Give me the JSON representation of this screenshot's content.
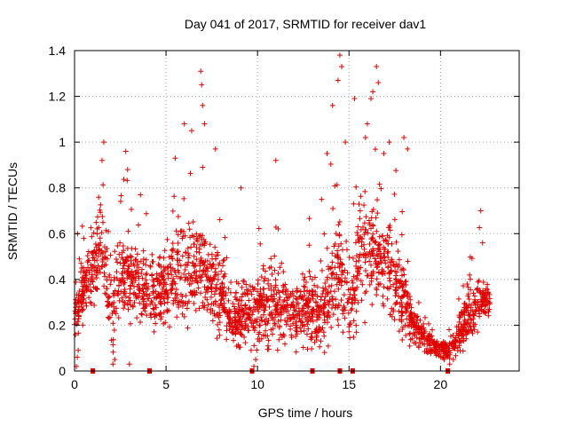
{
  "chart_data": {
    "type": "scatter",
    "title": "Day 041 of 2017, SRMTID for receiver dav1",
    "xlabel": "GPS time / hours",
    "ylabel": "SRMTID / TECUs",
    "xlim": [
      0,
      24.3
    ],
    "ylim": [
      0,
      1.4
    ],
    "x_ticks": [
      0,
      5,
      10,
      15,
      20
    ],
    "x_tick_labels": [
      "0",
      "5",
      "10",
      "15",
      "20"
    ],
    "y_ticks": [
      0,
      0.2,
      0.4,
      0.6,
      0.8,
      1.0,
      1.2,
      1.4
    ],
    "y_tick_labels": [
      "0",
      "0.2",
      "0.4",
      "0.6",
      "0.8",
      "1",
      "1.2",
      "1.4"
    ],
    "grid": true,
    "marker": "+",
    "color": "#e00000",
    "flag_markers_at_zero": [
      1.0,
      4.1,
      9.7,
      13.0,
      14.5,
      15.2,
      20.4
    ],
    "envelope": {
      "x": [
        0.0,
        0.5,
        1.0,
        1.5,
        2.0,
        2.5,
        3.0,
        3.5,
        4.0,
        4.5,
        5.0,
        5.5,
        6.0,
        6.5,
        7.0,
        7.5,
        8.0,
        8.5,
        9.0,
        9.5,
        10.0,
        10.5,
        11.0,
        11.5,
        12.0,
        12.5,
        13.0,
        13.5,
        14.0,
        14.5,
        15.0,
        15.5,
        16.0,
        16.5,
        17.0,
        17.5,
        18.0,
        18.5,
        19.0,
        19.5,
        20.0,
        20.5,
        21.0,
        21.5,
        22.0,
        22.5
      ],
      "center": [
        0.25,
        0.38,
        0.42,
        0.55,
        0.25,
        0.42,
        0.4,
        0.38,
        0.35,
        0.33,
        0.36,
        0.4,
        0.42,
        0.48,
        0.45,
        0.38,
        0.33,
        0.25,
        0.24,
        0.25,
        0.26,
        0.28,
        0.3,
        0.27,
        0.25,
        0.26,
        0.24,
        0.25,
        0.35,
        0.45,
        0.25,
        0.5,
        0.55,
        0.5,
        0.45,
        0.4,
        0.3,
        0.2,
        0.15,
        0.11,
        0.1,
        0.08,
        0.15,
        0.25,
        0.28,
        0.3
      ],
      "spread": [
        0.12,
        0.1,
        0.12,
        0.18,
        0.15,
        0.15,
        0.14,
        0.12,
        0.12,
        0.12,
        0.14,
        0.16,
        0.18,
        0.16,
        0.15,
        0.13,
        0.12,
        0.1,
        0.1,
        0.11,
        0.12,
        0.14,
        0.14,
        0.12,
        0.12,
        0.12,
        0.11,
        0.12,
        0.18,
        0.2,
        0.12,
        0.2,
        0.2,
        0.18,
        0.16,
        0.14,
        0.12,
        0.08,
        0.05,
        0.03,
        0.03,
        0.03,
        0.07,
        0.1,
        0.1,
        0.05
      ]
    },
    "outliers": [
      {
        "x": 1.6,
        "y": 1.0
      },
      {
        "x": 1.5,
        "y": 0.92
      },
      {
        "x": 2.8,
        "y": 0.96
      },
      {
        "x": 2.9,
        "y": 0.88
      },
      {
        "x": 3.6,
        "y": 0.77
      },
      {
        "x": 5.5,
        "y": 0.93
      },
      {
        "x": 6.0,
        "y": 1.08
      },
      {
        "x": 6.4,
        "y": 1.05
      },
      {
        "x": 6.9,
        "y": 1.31
      },
      {
        "x": 6.95,
        "y": 1.25
      },
      {
        "x": 7.0,
        "y": 1.16
      },
      {
        "x": 7.1,
        "y": 1.08
      },
      {
        "x": 7.0,
        "y": 0.89
      },
      {
        "x": 7.7,
        "y": 0.97
      },
      {
        "x": 9.1,
        "y": 0.8
      },
      {
        "x": 11.0,
        "y": 0.92
      },
      {
        "x": 13.5,
        "y": 0.75
      },
      {
        "x": 13.8,
        "y": 0.95
      },
      {
        "x": 14.1,
        "y": 1.16
      },
      {
        "x": 14.5,
        "y": 1.38
      },
      {
        "x": 14.6,
        "y": 1.33
      },
      {
        "x": 14.4,
        "y": 1.27
      },
      {
        "x": 14.8,
        "y": 1.0
      },
      {
        "x": 15.3,
        "y": 1.19
      },
      {
        "x": 15.9,
        "y": 1.02
      },
      {
        "x": 16.0,
        "y": 1.08
      },
      {
        "x": 16.2,
        "y": 1.19
      },
      {
        "x": 16.3,
        "y": 1.22
      },
      {
        "x": 16.5,
        "y": 1.33
      },
      {
        "x": 16.6,
        "y": 1.26
      },
      {
        "x": 16.9,
        "y": 0.95
      },
      {
        "x": 17.2,
        "y": 1.0
      },
      {
        "x": 18.0,
        "y": 1.02
      },
      {
        "x": 18.2,
        "y": 0.97
      },
      {
        "x": 22.2,
        "y": 0.7
      },
      {
        "x": 22.3,
        "y": 0.56
      },
      {
        "x": 0.1,
        "y": 0.02
      },
      {
        "x": 0.15,
        "y": 0.06
      },
      {
        "x": 0.2,
        "y": 0.09
      },
      {
        "x": 2.1,
        "y": 0.03
      },
      {
        "x": 2.2,
        "y": 0.05
      },
      {
        "x": 3.0,
        "y": 0.03
      },
      {
        "x": 9.8,
        "y": 0.02
      },
      {
        "x": 9.9,
        "y": 0.05
      },
      {
        "x": 20.5,
        "y": 0.03
      },
      {
        "x": 20.7,
        "y": 0.05
      },
      {
        "x": 20.2,
        "y": 0.05
      }
    ]
  }
}
